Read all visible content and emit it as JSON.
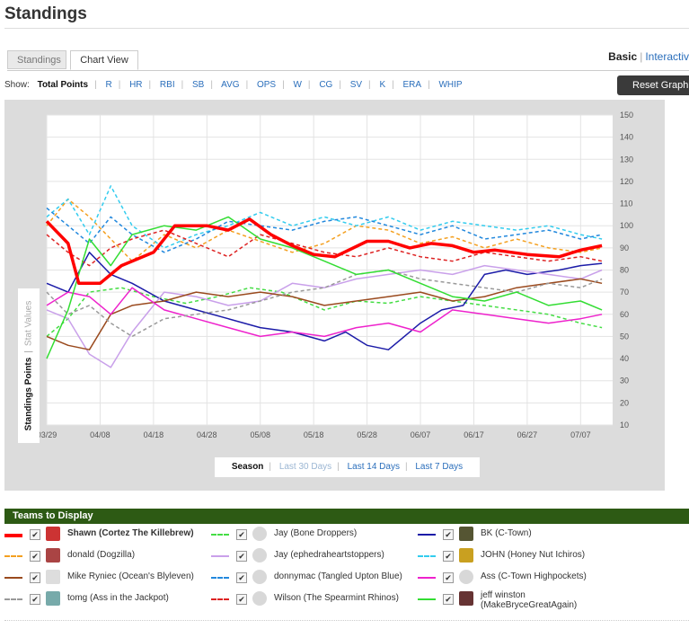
{
  "page": {
    "title": "Standings"
  },
  "tabs": [
    {
      "label": "Standings"
    },
    {
      "label": "Chart View"
    }
  ],
  "view_toggle": {
    "basic": "Basic",
    "separator": "|",
    "interactive": "Interactiv"
  },
  "show": {
    "label": "Show:",
    "stats": [
      "Total Points",
      "R",
      "HR",
      "RBI",
      "SB",
      "AVG",
      "OPS",
      "W",
      "CG",
      "SV",
      "K",
      "ERA",
      "WHIP"
    ],
    "active": "Total Points"
  },
  "reset_button": "Reset Graph",
  "y_axis_toggle": {
    "standings": "Standings Points",
    "separator": "|",
    "stat": "Stat Values"
  },
  "range": {
    "options": [
      "Season",
      "Last 30 Days",
      "Last 14 Days",
      "Last 7 Days"
    ],
    "active": "Season"
  },
  "legend": {
    "title": "Teams to Display",
    "teams": [
      {
        "name": "Shawn (Cortez The Killebrew)",
        "color": "#ff0000",
        "dash": "solid",
        "checked": true
      },
      {
        "name": "Jay (Bone Droppers)",
        "color": "#44dd44",
        "dash": "dashed",
        "checked": true
      },
      {
        "name": "BK (C-Town)",
        "color": "#1c1ca8",
        "dash": "solid",
        "checked": true
      },
      {
        "name": "donald (Dogzilla)",
        "color": "#f4a020",
        "dash": "dashed",
        "checked": true
      },
      {
        "name": "Jay (ephedraheartstoppers)",
        "color": "#c9a0ea",
        "dash": "solid",
        "checked": true
      },
      {
        "name": "JOHN (Honey Nut Ichiros)",
        "color": "#33ccee",
        "dash": "dashed",
        "checked": true
      },
      {
        "name": "Mike Ryniec (Ocean's Blyleven)",
        "color": "#9a4a1e",
        "dash": "solid",
        "checked": true
      },
      {
        "name": "donnymac (Tangled Upton Blue)",
        "color": "#2288dd",
        "dash": "dashed",
        "checked": true
      },
      {
        "name": "Ass (C-Town Highpockets)",
        "color": "#ee22cc",
        "dash": "solid",
        "checked": true
      },
      {
        "name": "tomg (Ass in the Jackpot)",
        "color": "#999999",
        "dash": "dashed",
        "checked": true
      },
      {
        "name": "Wilson (The Spearmint Rhinos)",
        "color": "#dd2222",
        "dash": "dashed",
        "checked": true
      },
      {
        "name": "jeff winston (MakeBryceGreatAgain)",
        "color": "#33dd33",
        "dash": "solid",
        "checked": true
      }
    ]
  },
  "chart_data": {
    "type": "line",
    "x_ticks": [
      "03/29",
      "04/08",
      "04/18",
      "04/28",
      "05/08",
      "05/18",
      "05/28",
      "06/07",
      "06/17",
      "06/27",
      "07/07"
    ],
    "x_range": [
      "03/29",
      "07/13"
    ],
    "ylim": [
      10,
      150
    ],
    "y_ticks": [
      10,
      20,
      30,
      40,
      50,
      60,
      70,
      80,
      90,
      100,
      110,
      120,
      130,
      140,
      150
    ],
    "grid": true,
    "series": [
      {
        "name": "Shawn (Cortez The Killebrew)",
        "color": "#ff0000",
        "dash": "solid",
        "width": 3.5,
        "days": [
          0,
          4,
          6,
          10,
          14,
          20,
          24,
          30,
          34,
          38,
          42,
          46,
          50,
          54,
          60,
          64,
          68,
          72,
          76,
          80,
          84,
          90,
          96,
          100,
          104
        ],
        "values": [
          102,
          92,
          74,
          74,
          82,
          88,
          100,
          100,
          98,
          103,
          96,
          91,
          87,
          86,
          93,
          93,
          90,
          92,
          91,
          88,
          89,
          87,
          86,
          89,
          91
        ]
      },
      {
        "name": "Jay (Bone Droppers)",
        "color": "#44dd44",
        "dash": "dashed",
        "width": 1.5,
        "days": [
          0,
          4,
          8,
          14,
          20,
          26,
          32,
          38,
          44,
          52,
          58,
          64,
          70,
          76,
          82,
          88,
          94,
          100,
          104
        ],
        "values": [
          50,
          58,
          70,
          72,
          68,
          65,
          68,
          72,
          70,
          62,
          66,
          65,
          68,
          66,
          64,
          62,
          60,
          56,
          54
        ]
      },
      {
        "name": "BK (C-Town)",
        "color": "#1c1ca8",
        "dash": "solid",
        "width": 1.5,
        "days": [
          0,
          4,
          8,
          12,
          16,
          22,
          28,
          34,
          40,
          46,
          52,
          56,
          60,
          64,
          70,
          74,
          78,
          82,
          86,
          90,
          96,
          100,
          104
        ],
        "values": [
          74,
          70,
          88,
          78,
          74,
          66,
          62,
          58,
          54,
          52,
          48,
          52,
          46,
          44,
          56,
          62,
          64,
          78,
          80,
          78,
          80,
          82,
          83
        ]
      },
      {
        "name": "donald (Dogzilla)",
        "color": "#f4a020",
        "dash": "dashed",
        "width": 1.5,
        "days": [
          0,
          4,
          8,
          12,
          16,
          22,
          28,
          34,
          40,
          46,
          52,
          58,
          64,
          70,
          76,
          82,
          88,
          94,
          100,
          104
        ],
        "values": [
          100,
          112,
          104,
          94,
          84,
          96,
          90,
          98,
          93,
          88,
          92,
          100,
          98,
          92,
          95,
          90,
          94,
          90,
          88,
          90
        ]
      },
      {
        "name": "Jay (ephedraheartstoppers)",
        "color": "#c9a0ea",
        "dash": "solid",
        "width": 1.5,
        "days": [
          0,
          4,
          8,
          12,
          16,
          22,
          28,
          34,
          40,
          46,
          52,
          58,
          64,
          70,
          76,
          82,
          88,
          94,
          100,
          104
        ],
        "values": [
          62,
          58,
          42,
          36,
          52,
          70,
          68,
          64,
          66,
          74,
          72,
          76,
          78,
          80,
          78,
          82,
          80,
          78,
          76,
          80
        ]
      },
      {
        "name": "JOHN (Honey Nut Ichiros)",
        "color": "#33ccee",
        "dash": "dashed",
        "width": 1.5,
        "days": [
          0,
          4,
          8,
          12,
          16,
          22,
          28,
          34,
          40,
          46,
          52,
          58,
          64,
          70,
          76,
          82,
          88,
          94,
          100,
          104
        ],
        "values": [
          104,
          112,
          96,
          118,
          100,
          90,
          96,
          100,
          106,
          100,
          104,
          100,
          104,
          98,
          102,
          100,
          98,
          100,
          96,
          94
        ]
      },
      {
        "name": "Mike Ryniec (Ocean's Blyleven)",
        "color": "#9a4a1e",
        "dash": "solid",
        "width": 1.5,
        "days": [
          0,
          4,
          8,
          12,
          16,
          22,
          28,
          34,
          40,
          46,
          52,
          58,
          64,
          70,
          76,
          82,
          88,
          94,
          100,
          104
        ],
        "values": [
          50,
          46,
          44,
          60,
          64,
          66,
          70,
          68,
          70,
          68,
          64,
          66,
          68,
          70,
          66,
          68,
          72,
          74,
          76,
          74
        ]
      },
      {
        "name": "donnymac (Tangled Upton Blue)",
        "color": "#2288dd",
        "dash": "dashed",
        "width": 1.5,
        "days": [
          0,
          4,
          8,
          12,
          16,
          22,
          28,
          34,
          40,
          46,
          52,
          58,
          64,
          70,
          76,
          82,
          88,
          94,
          100,
          104
        ],
        "values": [
          108,
          100,
          92,
          104,
          96,
          88,
          94,
          102,
          100,
          98,
          102,
          104,
          100,
          96,
          100,
          94,
          96,
          98,
          94,
          96
        ]
      },
      {
        "name": "Ass (C-Town Highpockets)",
        "color": "#ee22cc",
        "dash": "solid",
        "width": 1.5,
        "days": [
          0,
          4,
          8,
          12,
          16,
          22,
          28,
          34,
          40,
          46,
          52,
          58,
          64,
          70,
          76,
          82,
          88,
          94,
          100,
          104
        ],
        "values": [
          64,
          70,
          68,
          60,
          72,
          62,
          58,
          54,
          50,
          52,
          50,
          54,
          56,
          52,
          62,
          60,
          58,
          56,
          58,
          60
        ]
      },
      {
        "name": "tomg (Ass in the Jackpot)",
        "color": "#999999",
        "dash": "dashed",
        "width": 1.5,
        "days": [
          0,
          4,
          8,
          12,
          16,
          22,
          28,
          34,
          40,
          46,
          52,
          58,
          64,
          70,
          76,
          82,
          88,
          94,
          100,
          104
        ],
        "values": [
          70,
          60,
          64,
          56,
          50,
          58,
          60,
          62,
          66,
          70,
          72,
          78,
          80,
          76,
          74,
          72,
          70,
          74,
          72,
          76
        ]
      },
      {
        "name": "Wilson (The Spearmint Rhinos)",
        "color": "#dd2222",
        "dash": "dashed",
        "width": 1.5,
        "days": [
          0,
          4,
          8,
          12,
          16,
          22,
          28,
          34,
          40,
          46,
          52,
          58,
          64,
          70,
          76,
          82,
          88,
          94,
          100,
          104
        ],
        "values": [
          96,
          88,
          82,
          90,
          94,
          98,
          92,
          86,
          96,
          92,
          88,
          86,
          90,
          86,
          84,
          88,
          86,
          84,
          86,
          84
        ]
      },
      {
        "name": "jeff winston (MakeBryceGreatAgain)",
        "color": "#33dd33",
        "dash": "solid",
        "width": 1.5,
        "days": [
          0,
          4,
          8,
          12,
          16,
          22,
          28,
          34,
          40,
          46,
          52,
          58,
          64,
          70,
          76,
          82,
          88,
          94,
          100,
          104
        ],
        "values": [
          40,
          62,
          94,
          82,
          96,
          100,
          98,
          104,
          94,
          90,
          84,
          78,
          80,
          74,
          68,
          66,
          70,
          64,
          66,
          62
        ]
      }
    ]
  }
}
